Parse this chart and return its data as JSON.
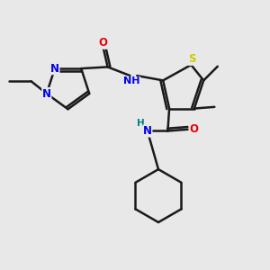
{
  "bg_color": "#e8e8e8",
  "bond_color": "#1a1a1a",
  "bond_width": 1.8,
  "dbo": 0.08,
  "atom_colors": {
    "N": "#0000ee",
    "O": "#ee0000",
    "S": "#cccc00",
    "H": "#008080",
    "C": "#1a1a1a"
  },
  "font_size": 8.5,
  "figsize": [
    3.0,
    3.0
  ],
  "dpi": 100
}
